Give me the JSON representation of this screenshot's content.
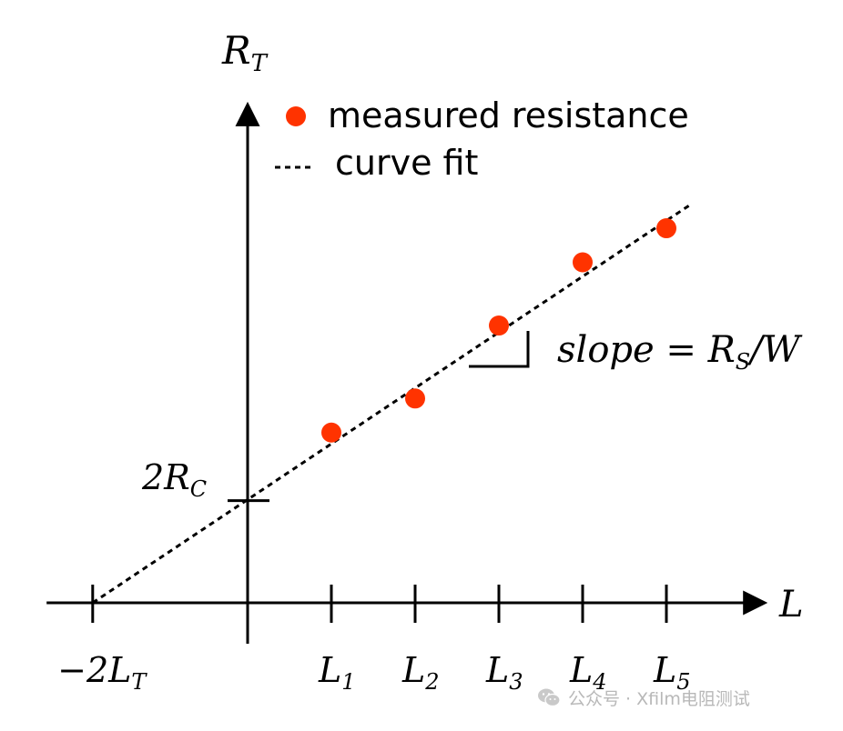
{
  "chart_data": {
    "type": "scatter",
    "x_axis_label": "L",
    "y_axis_label_main": "R",
    "y_axis_label_sub": "T",
    "x_ticks": [
      {
        "main": "L",
        "sub": "1",
        "x": 1
      },
      {
        "main": "L",
        "sub": "2",
        "x": 2
      },
      {
        "main": "L",
        "sub": "3",
        "x": 3
      },
      {
        "main": "L",
        "sub": "4",
        "x": 4
      },
      {
        "main": "L",
        "sub": "5",
        "x": 5
      }
    ],
    "negative_tick": {
      "main": "−2L",
      "sub": "T",
      "x": -1.85
    },
    "intercept_label": {
      "main": "2R",
      "sub": "C",
      "y": 1.05
    },
    "series": [
      {
        "name": "measured resistance",
        "color": "#ff3300",
        "points": [
          {
            "x": 1,
            "y": 1.75
          },
          {
            "x": 2,
            "y": 2.1
          },
          {
            "x": 3,
            "y": 2.85
          },
          {
            "x": 4,
            "y": 3.5
          },
          {
            "x": 5,
            "y": 3.85
          }
        ]
      }
    ],
    "fit": {
      "name": "curve fit",
      "style": "dotted",
      "x_start": -1.85,
      "y_start": 0,
      "x_end": 5.3,
      "y_end": 4.1
    },
    "annotation": "slope = R_S/W",
    "annotation_parts": [
      "slope = R",
      "S",
      "/W"
    ],
    "xlim": [
      -2.4,
      6.15
    ],
    "ylim": [
      -0.42,
      5.1
    ]
  }
}
